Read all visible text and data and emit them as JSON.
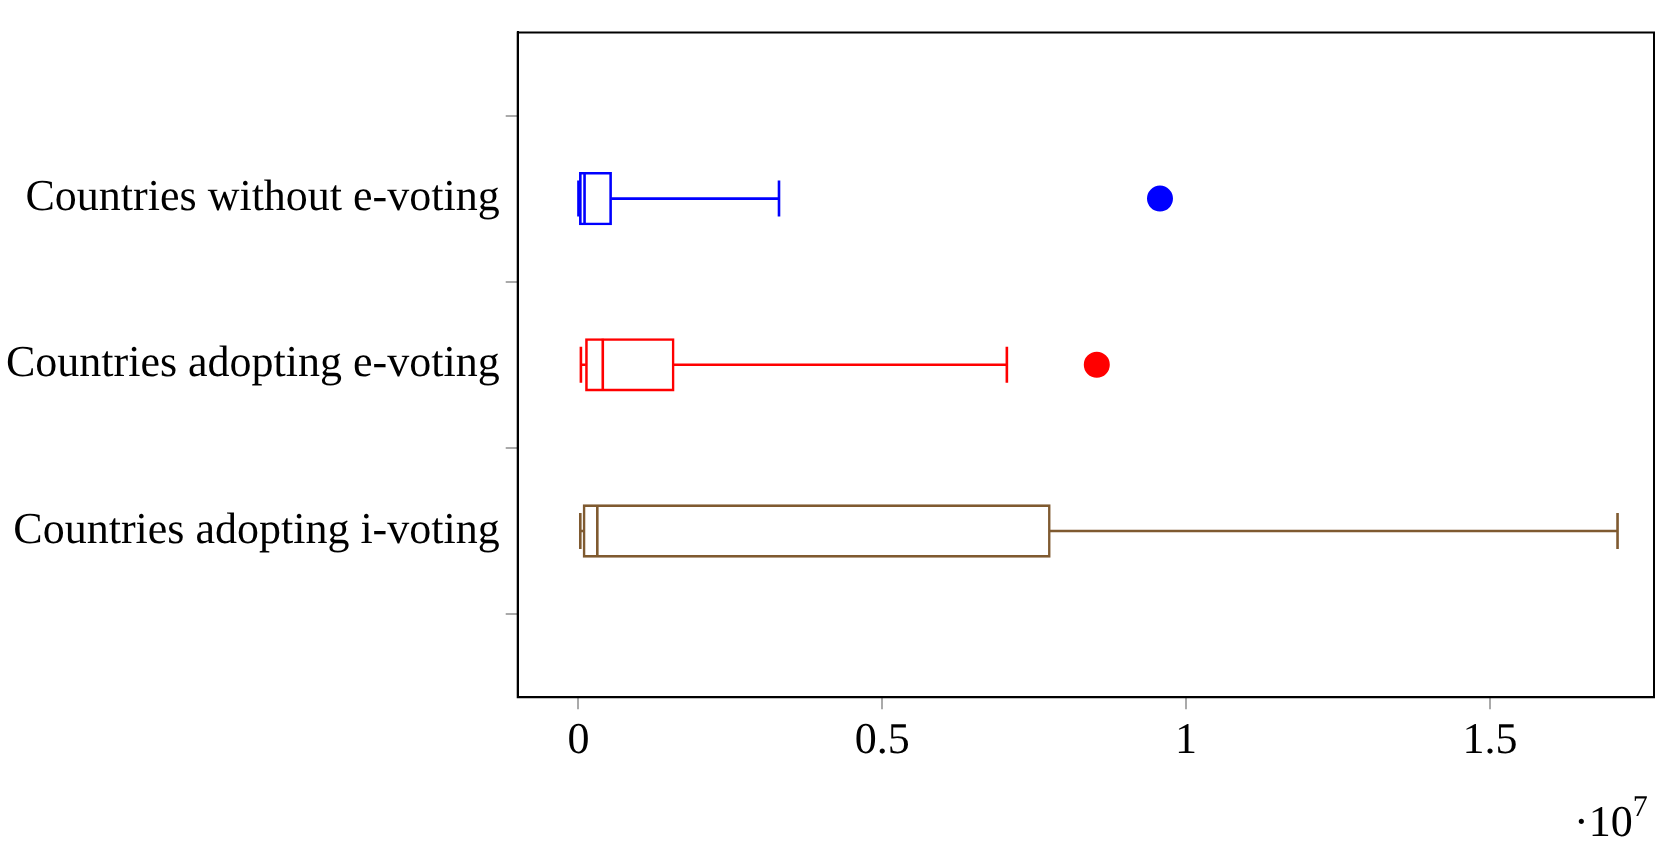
{
  "chart_data": {
    "type": "box",
    "categories": [
      "Countries without e-voting",
      "Countries adopting e-voting",
      "Countries adopting i-voting"
    ],
    "boxes": [
      {
        "low": 0,
        "q1": 0.002,
        "median": 0.01,
        "q3": 0.054,
        "high": 0.33,
        "outliers": [
          0.957
        ]
      },
      {
        "low": 0.004,
        "q1": 0.012,
        "median": 0.04,
        "q3": 0.157,
        "high": 0.705,
        "outliers": [
          0.853
        ]
      },
      {
        "low": 0.003,
        "q1": 0.008,
        "median": 0.031,
        "q3": 0.776,
        "high": 1.71
      }
    ],
    "orientation": "horizontal",
    "colors": [
      "#0000ff",
      "#ff0000",
      "#7f5a30"
    ],
    "xlim": [
      -0.1,
      1.77
    ],
    "xticks": [
      0,
      0.5,
      1,
      1.5
    ],
    "annotations": [
      "·10$^{7}$"
    ],
    "grid": false
  }
}
